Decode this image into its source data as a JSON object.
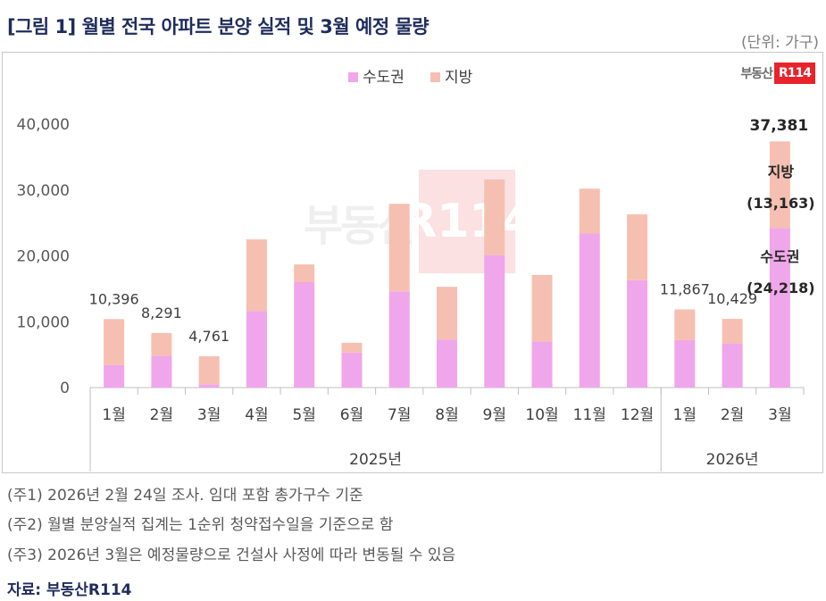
{
  "title": "[그림 1] 월별 전국 아파트 분양 실적 및 3월 예정 물량",
  "unit": "(단위: 가구)",
  "brand": {
    "logo_text": "부동산",
    "logo_box": "R114",
    "watermark_text": "부동산",
    "watermark_box": "R114",
    "color": "#e8232a"
  },
  "notes": [
    "(주1) 2026년 2월 24일 조사. 임대 포함 총가구수 기준",
    "(주2) 월별 분양실적 집계는 1순위 청약접수일을 기준으로 함",
    "(주3) 2026년 3월은 예정물량으로 건설사 사정에 따라 변동될 수 있음"
  ],
  "source": "자료: 부동산R114",
  "chart_data": {
    "type": "bar",
    "stacked": true,
    "categories": [
      "1월",
      "2월",
      "3월",
      "4월",
      "5월",
      "6월",
      "7월",
      "8월",
      "9월",
      "10월",
      "11월",
      "12월",
      "1월",
      "2월",
      "3월"
    ],
    "year_groups": [
      {
        "label": "2025년",
        "count": 12
      },
      {
        "label": "2026년",
        "count": 3
      }
    ],
    "series": [
      {
        "name": "수도권",
        "color": "#f0a6ea",
        "values": [
          3400,
          4800,
          500,
          11600,
          16000,
          5300,
          14600,
          7300,
          20100,
          7000,
          23400,
          16300,
          7200,
          6700,
          24218
        ]
      },
      {
        "name": "지방",
        "color": "#f5c0b1",
        "values": [
          6996,
          3491,
          4261,
          10900,
          2700,
          1500,
          13300,
          8000,
          11500,
          10100,
          6800,
          10000,
          4667,
          3729,
          13163
        ]
      }
    ],
    "total_labels": [
      "10,396",
      "8,291",
      "4,761",
      "",
      "",
      "",
      "",
      "",
      "",
      "",
      "",
      "",
      "11,867",
      "10,429",
      "37,381"
    ],
    "yticks": [
      "0",
      "10,000",
      "20,000",
      "30,000",
      "40,000"
    ],
    "ylim": [
      0,
      40000
    ],
    "legend": "top-center",
    "annotation": {
      "local_label": "지방",
      "local_value": "(13,163)",
      "capital_label": "수도권",
      "capital_value": "(24,218)"
    }
  }
}
